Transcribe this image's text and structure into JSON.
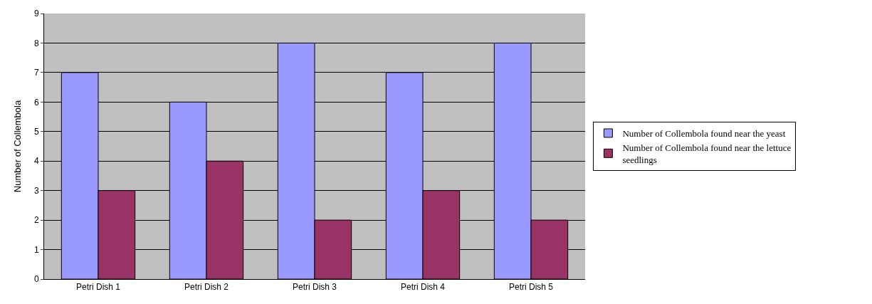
{
  "chart_data": {
    "type": "bar",
    "ylabel": "Number of Collembola",
    "categories": [
      "Petri Dish 1",
      "Petri Dish 2",
      "Petri Dish 3",
      "Petri Dish 4",
      "Petri Dish 5"
    ],
    "series": [
      {
        "name": "Number of Collembola found near the yeast",
        "color": "#9999ff",
        "values": [
          7,
          6,
          8,
          7,
          8
        ]
      },
      {
        "name": "Number of Collembola found near the lettuce seedlings",
        "color": "#993366",
        "values": [
          3,
          4,
          2,
          3,
          2
        ]
      }
    ],
    "ylim": [
      0,
      9
    ],
    "yticks": [
      0,
      1,
      2,
      3,
      4,
      5,
      6,
      7,
      8,
      9
    ],
    "grid": "y",
    "legend": "right"
  }
}
